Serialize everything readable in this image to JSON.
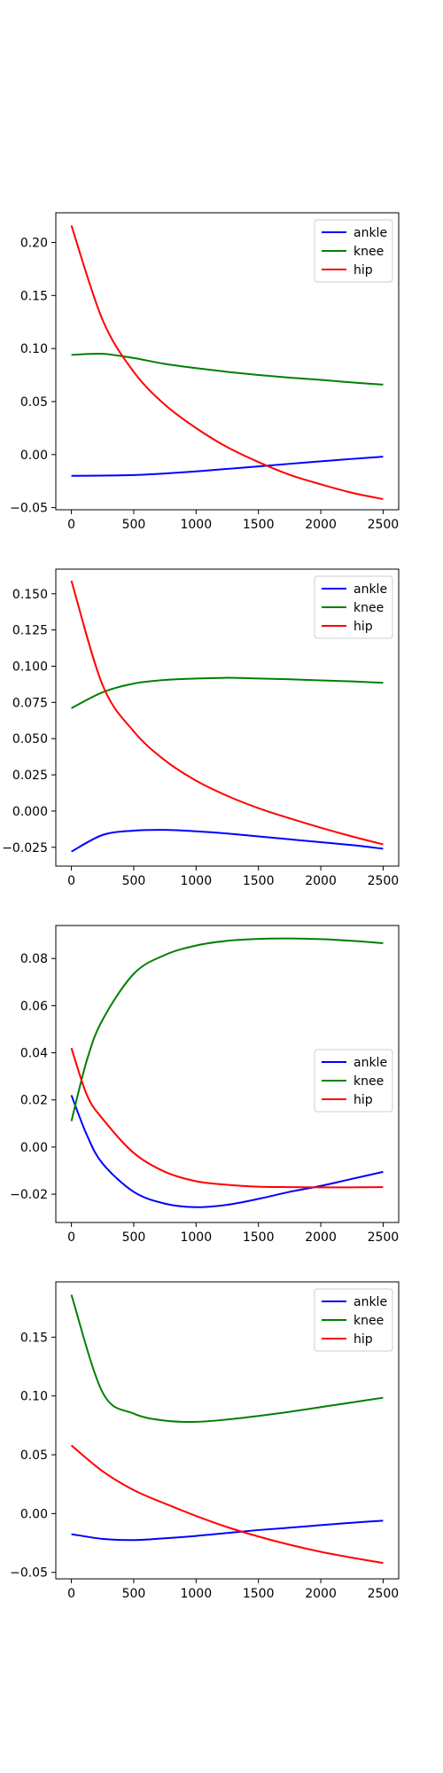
{
  "chart_data": [
    {
      "type": "line",
      "x": [
        0,
        250,
        500,
        750,
        1000,
        1250,
        1500,
        1750,
        2000,
        2250,
        2500
      ],
      "xlim": [
        -125,
        2625
      ],
      "ylim": [
        -0.052,
        0.228
      ],
      "xticks": [
        0,
        500,
        1000,
        1500,
        2000,
        2500
      ],
      "xtick_labels": [
        "0",
        "500",
        "1000",
        "1500",
        "2000",
        "2500"
      ],
      "yticks": [
        -0.05,
        0.0,
        0.05,
        0.1,
        0.15,
        0.2
      ],
      "ytick_labels": [
        "−0.05",
        "0.00",
        "0.05",
        "0.10",
        "0.15",
        "0.20"
      ],
      "legend": {
        "placement": "upper right"
      },
      "grid": false,
      "series": [
        {
          "name": "ankle",
          "color": "#0000ff",
          "values": [
            -0.02,
            -0.0198,
            -0.0193,
            -0.0178,
            -0.0158,
            -0.0135,
            -0.0111,
            -0.0087,
            -0.0063,
            -0.0041,
            -0.002
          ]
        },
        {
          "name": "knee",
          "color": "#008000",
          "values": [
            0.094,
            0.095,
            0.091,
            0.0855,
            0.0815,
            0.078,
            0.075,
            0.0725,
            0.0705,
            0.068,
            0.066
          ]
        },
        {
          "name": "hip",
          "color": "#ff0000",
          "values": [
            0.216,
            0.127,
            0.078,
            0.047,
            0.025,
            0.007,
            -0.007,
            -0.019,
            -0.028,
            -0.036,
            -0.042
          ]
        }
      ]
    },
    {
      "type": "line",
      "x": [
        0,
        250,
        500,
        750,
        1000,
        1250,
        1500,
        1750,
        2000,
        2250,
        2500
      ],
      "xlim": [
        -125,
        2625
      ],
      "ylim": [
        -0.038,
        0.167
      ],
      "xticks": [
        0,
        500,
        1000,
        1500,
        2000,
        2500
      ],
      "xtick_labels": [
        "0",
        "500",
        "1000",
        "1500",
        "2000",
        "2500"
      ],
      "yticks": [
        -0.025,
        0.0,
        0.025,
        0.05,
        0.075,
        0.1,
        0.125,
        0.15
      ],
      "ytick_labels": [
        "−0.025",
        "0.000",
        "0.025",
        "0.050",
        "0.075",
        "0.100",
        "0.125",
        "0.150"
      ],
      "legend": {
        "placement": "upper right"
      },
      "grid": false,
      "series": [
        {
          "name": "ankle",
          "color": "#0000ff",
          "values": [
            -0.028,
            -0.0165,
            -0.0135,
            -0.013,
            -0.014,
            -0.0155,
            -0.0175,
            -0.0195,
            -0.0215,
            -0.0235,
            -0.026
          ]
        },
        {
          "name": "knee",
          "color": "#008000",
          "values": [
            0.071,
            0.082,
            0.088,
            0.0905,
            0.0915,
            0.092,
            0.0915,
            0.091,
            0.0902,
            0.0895,
            0.0885
          ]
        },
        {
          "name": "hip",
          "color": "#ff0000",
          "values": [
            0.159,
            0.087,
            0.055,
            0.035,
            0.021,
            0.0105,
            0.002,
            -0.005,
            -0.0115,
            -0.0175,
            -0.023
          ]
        }
      ]
    },
    {
      "type": "line",
      "x": [
        0,
        125,
        250,
        500,
        750,
        1000,
        1250,
        1500,
        1750,
        2000,
        2250,
        2500
      ],
      "xlim": [
        -125,
        2625
      ],
      "ylim": [
        -0.032,
        0.094
      ],
      "xticks": [
        0,
        500,
        1000,
        1500,
        2000,
        2500
      ],
      "xtick_labels": [
        "0",
        "500",
        "1000",
        "1500",
        "2000",
        "2500"
      ],
      "yticks": [
        -0.02,
        0.0,
        0.02,
        0.04,
        0.06,
        0.08
      ],
      "ytick_labels": [
        "−0.02",
        "0.00",
        "0.02",
        "0.04",
        "0.06",
        "0.08"
      ],
      "legend": {
        "placement": "center right"
      },
      "grid": false,
      "series": [
        {
          "name": "ankle",
          "color": "#0000ff",
          "values": [
            0.022,
            0.005,
            -0.007,
            -0.019,
            -0.024,
            -0.0255,
            -0.0245,
            -0.022,
            -0.019,
            -0.0165,
            -0.0135,
            -0.0105
          ]
        },
        {
          "name": "knee",
          "color": "#008000",
          "values": [
            0.011,
            0.037,
            0.054,
            0.0735,
            0.0815,
            0.0855,
            0.0875,
            0.0883,
            0.0885,
            0.0882,
            0.0875,
            0.0865
          ]
        },
        {
          "name": "hip",
          "color": "#ff0000",
          "values": [
            0.042,
            0.022,
            0.012,
            -0.0025,
            -0.0105,
            -0.0145,
            -0.016,
            -0.0168,
            -0.017,
            -0.0171,
            -0.0171,
            -0.017
          ]
        }
      ]
    },
    {
      "type": "line",
      "x": [
        0,
        250,
        500,
        750,
        1000,
        1250,
        1500,
        1750,
        2000,
        2250,
        2500
      ],
      "xlim": [
        -125,
        2625
      ],
      "ylim": [
        -0.0555,
        0.197
      ],
      "xticks": [
        0,
        500,
        1000,
        1500,
        2000,
        2500
      ],
      "xtick_labels": [
        "0",
        "500",
        "1000",
        "1500",
        "2000",
        "2500"
      ],
      "yticks": [
        -0.05,
        0.0,
        0.05,
        0.1,
        0.15
      ],
      "ytick_labels": [
        "−0.05",
        "0.00",
        "0.05",
        "0.10",
        "0.15"
      ],
      "legend": {
        "placement": "upper right"
      },
      "grid": false,
      "series": [
        {
          "name": "ankle",
          "color": "#0000ff",
          "values": [
            -0.0175,
            -0.0215,
            -0.0225,
            -0.021,
            -0.019,
            -0.0165,
            -0.014,
            -0.012,
            -0.0098,
            -0.0078,
            -0.006
          ]
        },
        {
          "name": "knee",
          "color": "#008000",
          "values": [
            0.186,
            0.103,
            0.085,
            0.079,
            0.078,
            0.08,
            0.083,
            0.0865,
            0.0905,
            0.0945,
            0.0985
          ]
        },
        {
          "name": "hip",
          "color": "#ff0000",
          "values": [
            0.058,
            0.036,
            0.02,
            0.0085,
            -0.002,
            -0.0115,
            -0.0195,
            -0.0265,
            -0.0325,
            -0.0375,
            -0.042
          ]
        }
      ]
    }
  ]
}
